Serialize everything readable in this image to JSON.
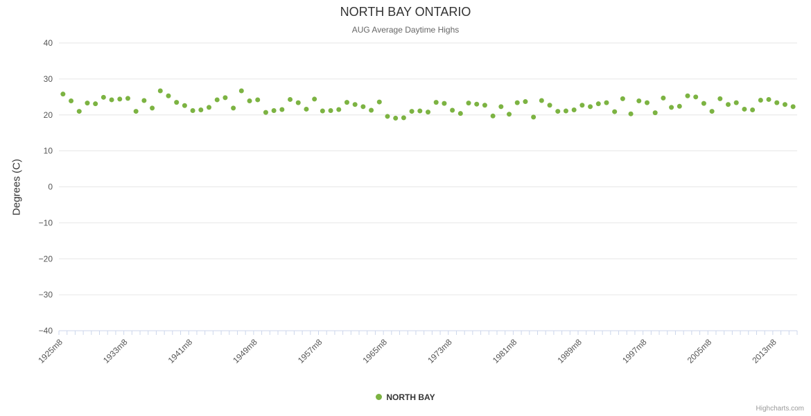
{
  "chart": {
    "title": "NORTH BAY ONTARIO",
    "subtitle": "AUG Average Daytime Highs",
    "ylabel": "Degrees (C)"
  },
  "legend": {
    "label": "NORTH BAY"
  },
  "credits": "Highcharts.com",
  "chart_data": {
    "type": "scatter",
    "title": "NORTH BAY ONTARIO",
    "subtitle": "AUG Average Daytime Highs",
    "xlabel": "",
    "ylabel": "Degrees (C)",
    "series_name": "NORTH BAY",
    "color": "#7cb342",
    "grid": true,
    "legend_position": "bottom",
    "ylim": [
      -40,
      40
    ],
    "y_tick_step": 10,
    "y_tick_labels": [
      "40",
      "30",
      "20",
      "10",
      "0",
      "−10",
      "−20",
      "−30",
      "−40"
    ],
    "x_label_every": 8,
    "x_tick_labels": [
      "1925m8",
      "1933m8",
      "1941m8",
      "1949m8",
      "1957m8",
      "1965m8",
      "1973m8",
      "1981m8",
      "1989m8",
      "1997m8",
      "2005m8",
      "2013m8"
    ],
    "years": [
      1925,
      1926,
      1927,
      1928,
      1929,
      1930,
      1931,
      1932,
      1933,
      1934,
      1935,
      1936,
      1937,
      1938,
      1939,
      1940,
      1941,
      1942,
      1943,
      1944,
      1945,
      1946,
      1947,
      1948,
      1949,
      1950,
      1951,
      1952,
      1953,
      1954,
      1955,
      1956,
      1957,
      1958,
      1959,
      1960,
      1961,
      1962,
      1963,
      1964,
      1965,
      1966,
      1967,
      1968,
      1969,
      1970,
      1971,
      1972,
      1973,
      1974,
      1975,
      1976,
      1977,
      1978,
      1979,
      1980,
      1981,
      1982,
      1983,
      1984,
      1985,
      1986,
      1987,
      1988,
      1989,
      1990,
      1991,
      1992,
      1993,
      1994,
      1995,
      1996,
      1997,
      1998,
      1999,
      2000,
      2001,
      2002,
      2003,
      2004,
      2005,
      2006,
      2007,
      2008,
      2009,
      2010,
      2011,
      2012,
      2013,
      2014,
      2015
    ],
    "values": [
      25.8,
      23.9,
      21.0,
      23.3,
      23.1,
      24.9,
      24.2,
      24.4,
      24.6,
      21.0,
      24.0,
      21.9,
      26.7,
      25.3,
      23.5,
      22.6,
      21.2,
      21.4,
      22.1,
      24.2,
      24.8,
      21.9,
      26.7,
      23.9,
      24.2,
      20.7,
      21.2,
      21.5,
      24.3,
      23.4,
      21.6,
      24.4,
      21.1,
      21.2,
      21.5,
      23.5,
      22.9,
      22.3,
      21.3,
      23.6,
      19.6,
      19.1,
      19.2,
      21.0,
      21.1,
      20.8,
      23.5,
      23.2,
      21.3,
      20.4,
      23.3,
      23.0,
      22.7,
      19.7,
      22.3,
      20.2,
      23.4,
      23.7,
      19.4,
      24.0,
      22.7,
      21.0,
      21.1,
      21.4,
      22.7,
      22.3,
      23.1,
      23.4,
      20.9,
      24.5,
      20.3,
      23.9,
      23.4,
      20.6,
      24.7,
      22.1,
      22.4,
      25.3,
      25.0,
      23.2,
      21.0,
      24.5,
      22.9,
      23.4,
      21.6,
      21.4,
      24.1,
      24.3,
      23.4,
      22.9,
      22.3
    ]
  }
}
